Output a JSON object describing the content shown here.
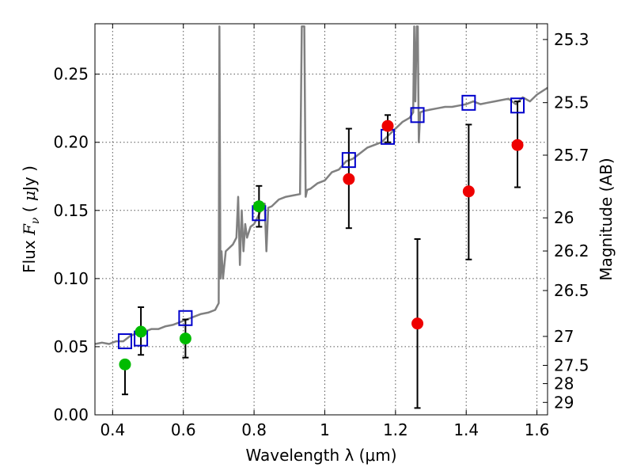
{
  "chart_data": {
    "type": "scatter",
    "xlabel": "Wavelength  λ (μm)",
    "ylabel": "Flux  F_ν  ( μJy )",
    "ylabel_parts": {
      "prefix": "Flux  ",
      "symbol": "F",
      "subscript": "ν",
      "open": "  ( ",
      "unit_mu": "μ",
      "unit_rest": "Jy )"
    },
    "y2label": "Magnitude (AB)",
    "xlim": [
      0.35,
      1.63
    ],
    "ylim": [
      0.0,
      0.287
    ],
    "grid": true,
    "x_ticks": [
      {
        "value": 0.4,
        "label": "0.4"
      },
      {
        "value": 0.6,
        "label": "0.6"
      },
      {
        "value": 0.8,
        "label": "0.8"
      },
      {
        "value": 1.0,
        "label": "1"
      },
      {
        "value": 1.2,
        "label": "1.2"
      },
      {
        "value": 1.4,
        "label": "1.4"
      },
      {
        "value": 1.6,
        "label": "1.6"
      }
    ],
    "y_ticks": [
      {
        "value": 0.0,
        "label": "0.00"
      },
      {
        "value": 0.05,
        "label": "0.05"
      },
      {
        "value": 0.1,
        "label": "0.10"
      },
      {
        "value": 0.15,
        "label": "0.15"
      },
      {
        "value": 0.2,
        "label": "0.20"
      },
      {
        "value": 0.25,
        "label": "0.25"
      }
    ],
    "y2_ticks": [
      {
        "mag": 25.3,
        "label": "25.3"
      },
      {
        "mag": 25.5,
        "label": "25.5"
      },
      {
        "mag": 25.7,
        "label": "25.7"
      },
      {
        "mag": 26.0,
        "label": "26"
      },
      {
        "mag": 26.2,
        "label": "26.2"
      },
      {
        "mag": 26.5,
        "label": "26.5"
      },
      {
        "mag": 27.0,
        "label": "27"
      },
      {
        "mag": 27.5,
        "label": "27.5"
      },
      {
        "mag": 28.0,
        "label": "28"
      },
      {
        "mag": 29.0,
        "label": "29"
      }
    ],
    "colors": {
      "spectrum": "#808080",
      "model": "#0000cc",
      "green": "#00bb00",
      "red": "#ee0000",
      "errorbar": "#000000"
    },
    "spectrum": {
      "x": [
        0.35,
        0.37,
        0.39,
        0.41,
        0.43,
        0.45,
        0.47,
        0.49,
        0.51,
        0.53,
        0.55,
        0.57,
        0.59,
        0.61,
        0.63,
        0.65,
        0.67,
        0.69,
        0.7,
        0.702,
        0.705,
        0.708,
        0.712,
        0.72,
        0.74,
        0.75,
        0.755,
        0.76,
        0.765,
        0.77,
        0.775,
        0.78,
        0.79,
        0.8,
        0.82,
        0.83,
        0.835,
        0.84,
        0.85,
        0.87,
        0.89,
        0.91,
        0.93,
        0.935,
        0.938,
        0.942,
        0.946,
        0.95,
        0.96,
        0.98,
        1.0,
        1.02,
        1.04,
        1.06,
        1.08,
        1.1,
        1.12,
        1.14,
        1.16,
        1.18,
        1.2,
        1.22,
        1.24,
        1.25,
        1.253,
        1.256,
        1.26,
        1.263,
        1.266,
        1.27,
        1.28,
        1.3,
        1.32,
        1.34,
        1.36,
        1.38,
        1.4,
        1.42,
        1.44,
        1.46,
        1.48,
        1.5,
        1.52,
        1.54,
        1.56,
        1.58,
        1.6,
        1.63
      ],
      "y": [
        0.052,
        0.053,
        0.052,
        0.054,
        0.054,
        0.058,
        0.06,
        0.061,
        0.063,
        0.063,
        0.065,
        0.066,
        0.068,
        0.07,
        0.072,
        0.074,
        0.075,
        0.077,
        0.082,
        0.285,
        0.1,
        0.12,
        0.1,
        0.12,
        0.125,
        0.13,
        0.16,
        0.11,
        0.15,
        0.12,
        0.14,
        0.13,
        0.138,
        0.14,
        0.15,
        0.155,
        0.12,
        0.152,
        0.153,
        0.158,
        0.16,
        0.161,
        0.162,
        0.285,
        0.285,
        0.285,
        0.16,
        0.165,
        0.166,
        0.17,
        0.172,
        0.178,
        0.18,
        0.186,
        0.188,
        0.192,
        0.196,
        0.198,
        0.2,
        0.205,
        0.21,
        0.215,
        0.218,
        0.222,
        0.285,
        0.23,
        0.285,
        0.285,
        0.2,
        0.222,
        0.223,
        0.224,
        0.225,
        0.226,
        0.226,
        0.227,
        0.228,
        0.23,
        0.228,
        0.229,
        0.23,
        0.231,
        0.232,
        0.228,
        0.233,
        0.23,
        0.235,
        0.24
      ]
    },
    "model_points": [
      {
        "x": 0.435,
        "y": 0.054
      },
      {
        "x": 0.48,
        "y": 0.056
      },
      {
        "x": 0.606,
        "y": 0.071
      },
      {
        "x": 0.814,
        "y": 0.148
      },
      {
        "x": 1.068,
        "y": 0.187
      },
      {
        "x": 1.178,
        "y": 0.204
      },
      {
        "x": 1.262,
        "y": 0.22
      },
      {
        "x": 1.407,
        "y": 0.229
      },
      {
        "x": 1.545,
        "y": 0.227
      }
    ],
    "green_points": [
      {
        "x": 0.435,
        "y": 0.037,
        "lo": 0.015,
        "hi": null
      },
      {
        "x": 0.48,
        "y": 0.061,
        "lo": 0.044,
        "hi": 0.079
      },
      {
        "x": 0.606,
        "y": 0.056,
        "lo": 0.042,
        "hi": 0.07
      },
      {
        "x": 0.814,
        "y": 0.153,
        "lo": 0.138,
        "hi": 0.168
      }
    ],
    "red_points": [
      {
        "x": 1.068,
        "y": 0.173,
        "lo": 0.137,
        "hi": 0.21
      },
      {
        "x": 1.178,
        "y": 0.212,
        "lo": 0.2,
        "hi": 0.22
      },
      {
        "x": 1.262,
        "y": 0.067,
        "lo": 0.005,
        "hi": 0.129
      },
      {
        "x": 1.407,
        "y": 0.164,
        "lo": 0.114,
        "hi": 0.213
      },
      {
        "x": 1.545,
        "y": 0.198,
        "lo": 0.167,
        "hi": 0.23
      }
    ]
  }
}
